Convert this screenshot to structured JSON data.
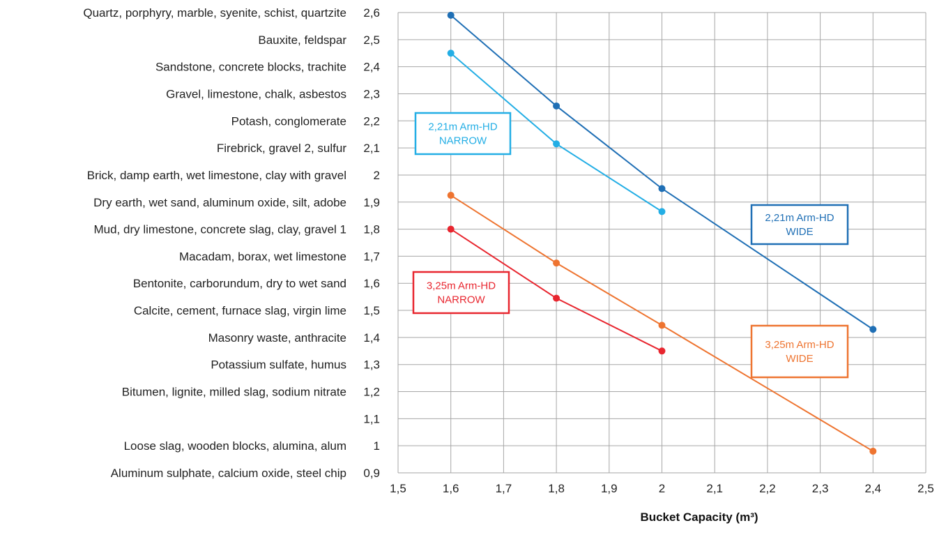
{
  "chart_data": {
    "type": "line",
    "title": "",
    "xlabel": "Bucket Capacity (m³)",
    "ylabel": "",
    "xlim": [
      1.5,
      2.5
    ],
    "ylim": [
      0.9,
      2.6
    ],
    "grid": true,
    "x_ticks": [
      "1,5",
      "1,6",
      "1,7",
      "1,8",
      "1,9",
      "2",
      "2,1",
      "2,2",
      "2,3",
      "2,4",
      "2,5"
    ],
    "y_ticks": [
      {
        "value": 2.6,
        "label": "2,6",
        "material": "Quartz, porphyry, marble, syenite, schist, quartzite"
      },
      {
        "value": 2.5,
        "label": "2,5",
        "material": "Bauxite, feldspar"
      },
      {
        "value": 2.4,
        "label": "2,4",
        "material": "Sandstone, concrete blocks, trachite"
      },
      {
        "value": 2.3,
        "label": "2,3",
        "material": "Gravel, limestone, chalk, asbestos"
      },
      {
        "value": 2.2,
        "label": "2,2",
        "material": "Potash, conglomerate"
      },
      {
        "value": 2.1,
        "label": "2,1",
        "material": "Firebrick, gravel 2, sulfur"
      },
      {
        "value": 2.0,
        "label": "2",
        "material": "Brick, damp earth, wet limestone, clay with gravel"
      },
      {
        "value": 1.9,
        "label": "1,9",
        "material": "Dry earth, wet sand, aluminum oxide, silt, adobe"
      },
      {
        "value": 1.8,
        "label": "1,8",
        "material": "Mud, dry limestone, concrete slag, clay, gravel 1"
      },
      {
        "value": 1.7,
        "label": "1,7",
        "material": "Macadam, borax, wet limestone"
      },
      {
        "value": 1.6,
        "label": "1,6",
        "material": "Bentonite, carborundum, dry to wet sand"
      },
      {
        "value": 1.5,
        "label": "1,5",
        "material": "Calcite, cement, furnace slag, virgin lime"
      },
      {
        "value": 1.4,
        "label": "1,4",
        "material": "Masonry waste, anthracite"
      },
      {
        "value": 1.3,
        "label": "1,3",
        "material": "Potassium sulfate, humus"
      },
      {
        "value": 1.2,
        "label": "1,2",
        "material": "Bitumen, lignite, milled slag, sodium nitrate"
      },
      {
        "value": 1.1,
        "label": "1,1",
        "material": ""
      },
      {
        "value": 1.0,
        "label": "1",
        "material": "Loose slag, wooden blocks, alumina, alum"
      },
      {
        "value": 0.9,
        "label": "0,9",
        "material": "Aluminum sulphate, calcium oxide, steel chip"
      }
    ],
    "series": [
      {
        "key": "wide-221",
        "color": "#1f6fb5",
        "label_lines": [
          "2,21m Arm-HD",
          "WIDE"
        ],
        "x": [
          1.6,
          1.8,
          2.0,
          2.4
        ],
        "y": [
          2.59,
          2.255,
          1.95,
          1.43
        ]
      },
      {
        "key": "narrow-221",
        "color": "#23aee5",
        "label_lines": [
          "2,21m Arm-HD",
          "NARROW"
        ],
        "x": [
          1.6,
          1.8,
          2.0
        ],
        "y": [
          2.45,
          2.115,
          1.865
        ]
      },
      {
        "key": "wide-325",
        "color": "#ee7430",
        "label_lines": [
          "3,25m Arm-HD",
          "WIDE"
        ],
        "x": [
          1.6,
          1.8,
          2.0,
          2.4
        ],
        "y": [
          1.925,
          1.675,
          1.445,
          0.98
        ]
      },
      {
        "key": "narrow-325",
        "color": "#e8262f",
        "label_lines": [
          "3,25m Arm-HD",
          "NARROW"
        ],
        "x": [
          1.6,
          1.8,
          2.0
        ],
        "y": [
          1.8,
          1.545,
          1.35
        ]
      }
    ]
  }
}
